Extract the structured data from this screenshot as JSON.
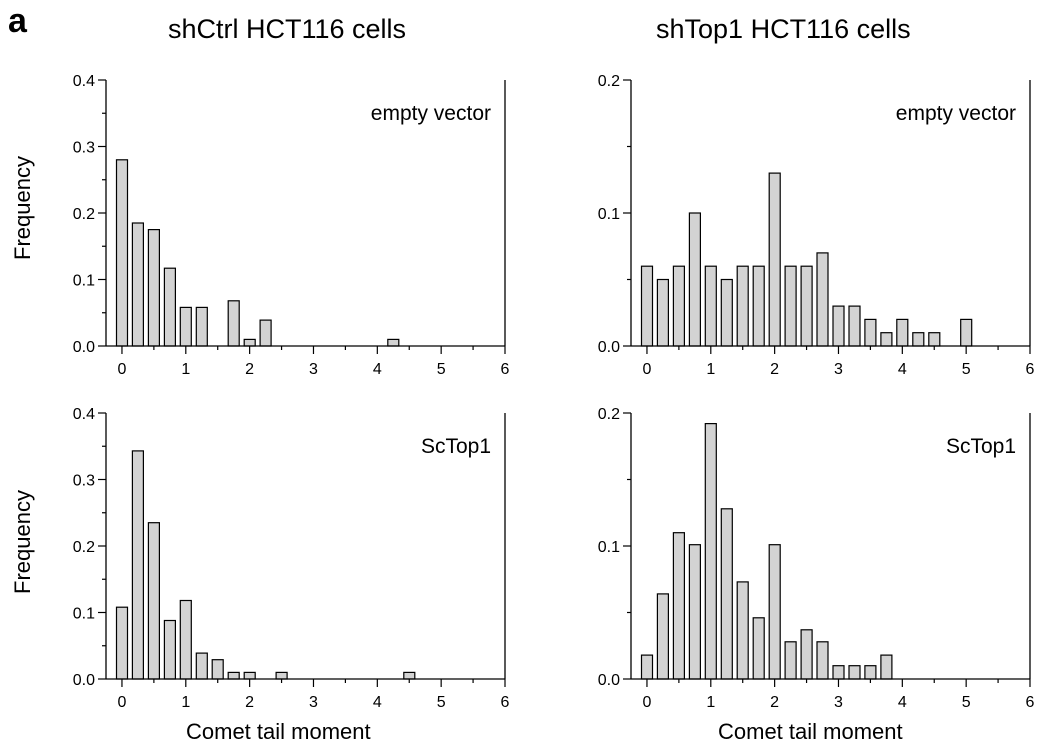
{
  "figure": {
    "panel_label": "a",
    "column_titles": [
      "shCtrl HCT116 cells",
      "shTop1 HCT116 cells"
    ],
    "y_axis_title": "Frequency",
    "x_axis_title": "Comet tail moment"
  },
  "chart_data": [
    {
      "type": "bar",
      "column": "shCtrl HCT116 cells",
      "annotation": "empty vector",
      "xlabel": "",
      "ylabel": "Frequency",
      "xlim": [
        -0.25,
        6
      ],
      "ylim": [
        0,
        0.4
      ],
      "xticks": [
        0,
        1,
        2,
        3,
        4,
        5,
        6
      ],
      "yticks": [
        0.0,
        0.1,
        0.2,
        0.3,
        0.4
      ],
      "ytick_labels": [
        "0.0",
        "0.1",
        "0.2",
        "0.3",
        "0.4"
      ],
      "bin_width": 0.25,
      "x": [
        0,
        0.25,
        0.5,
        0.75,
        1.0,
        1.25,
        1.5,
        1.75,
        2.0,
        2.25,
        2.5,
        2.75,
        3.0,
        3.25,
        3.5,
        3.75,
        4.0,
        4.25,
        4.5,
        4.75,
        5.0,
        5.25,
        5.5,
        5.75
      ],
      "values": [
        0.28,
        0.185,
        0.175,
        0.117,
        0.058,
        0.058,
        0,
        0.068,
        0.01,
        0.039,
        0,
        0,
        0,
        0,
        0,
        0,
        0,
        0.01,
        0,
        0,
        0,
        0,
        0,
        0
      ]
    },
    {
      "type": "bar",
      "column": "shTop1 HCT116 cells",
      "annotation": "empty vector",
      "xlabel": "",
      "ylabel": "",
      "xlim": [
        -0.25,
        6
      ],
      "ylim": [
        0,
        0.2
      ],
      "xticks": [
        0,
        1,
        2,
        3,
        4,
        5,
        6
      ],
      "yticks": [
        0.0,
        0.1,
        0.2
      ],
      "ytick_labels": [
        "0.0",
        "0.1",
        "0.2"
      ],
      "bin_width": 0.25,
      "x": [
        0,
        0.25,
        0.5,
        0.75,
        1.0,
        1.25,
        1.5,
        1.75,
        2.0,
        2.25,
        2.5,
        2.75,
        3.0,
        3.25,
        3.5,
        3.75,
        4.0,
        4.25,
        4.5,
        4.75,
        5.0,
        5.25,
        5.5,
        5.75
      ],
      "values": [
        0.06,
        0.05,
        0.06,
        0.1,
        0.06,
        0.05,
        0.06,
        0.06,
        0.13,
        0.06,
        0.06,
        0.07,
        0.03,
        0.03,
        0.02,
        0.01,
        0.02,
        0.01,
        0.01,
        0,
        0.02,
        0,
        0,
        0
      ]
    },
    {
      "type": "bar",
      "column": "shCtrl HCT116 cells",
      "annotation": "ScTop1",
      "xlabel": "Comet tail moment",
      "ylabel": "Frequency",
      "xlim": [
        -0.25,
        6
      ],
      "ylim": [
        0,
        0.4
      ],
      "xticks": [
        0,
        1,
        2,
        3,
        4,
        5,
        6
      ],
      "yticks": [
        0.0,
        0.1,
        0.2,
        0.3,
        0.4
      ],
      "ytick_labels": [
        "0.0",
        "0.1",
        "0.2",
        "0.3",
        "0.4"
      ],
      "bin_width": 0.25,
      "x": [
        0,
        0.25,
        0.5,
        0.75,
        1.0,
        1.25,
        1.5,
        1.75,
        2.0,
        2.25,
        2.5,
        2.75,
        3.0,
        3.25,
        3.5,
        3.75,
        4.0,
        4.25,
        4.5,
        4.75,
        5.0,
        5.25,
        5.5,
        5.75
      ],
      "values": [
        0.108,
        0.343,
        0.235,
        0.088,
        0.118,
        0.039,
        0.029,
        0.01,
        0.01,
        0,
        0.01,
        0,
        0,
        0,
        0,
        0,
        0,
        0,
        0.01,
        0,
        0,
        0,
        0,
        0
      ]
    },
    {
      "type": "bar",
      "column": "shTop1 HCT116 cells",
      "annotation": "ScTop1",
      "xlabel": "Comet tail moment",
      "ylabel": "",
      "xlim": [
        -0.25,
        6
      ],
      "ylim": [
        0,
        0.2
      ],
      "xticks": [
        0,
        1,
        2,
        3,
        4,
        5,
        6
      ],
      "yticks": [
        0.0,
        0.1,
        0.2
      ],
      "ytick_labels": [
        "0.0",
        "0.1",
        "0.2"
      ],
      "bin_width": 0.25,
      "x": [
        0,
        0.25,
        0.5,
        0.75,
        1.0,
        1.25,
        1.5,
        1.75,
        2.0,
        2.25,
        2.5,
        2.75,
        3.0,
        3.25,
        3.5,
        3.75,
        4.0,
        4.25,
        4.5,
        4.75,
        5.0,
        5.25,
        5.5,
        5.75
      ],
      "values": [
        0.018,
        0.064,
        0.11,
        0.101,
        0.192,
        0.128,
        0.073,
        0.046,
        0.101,
        0.028,
        0.037,
        0.028,
        0.01,
        0.01,
        0.01,
        0.018,
        0,
        0,
        0,
        0,
        0,
        0,
        0,
        0
      ]
    }
  ],
  "colors": {
    "bar_fill": "#d3d3d3",
    "bar_stroke": "#000000",
    "axis": "#000000"
  }
}
